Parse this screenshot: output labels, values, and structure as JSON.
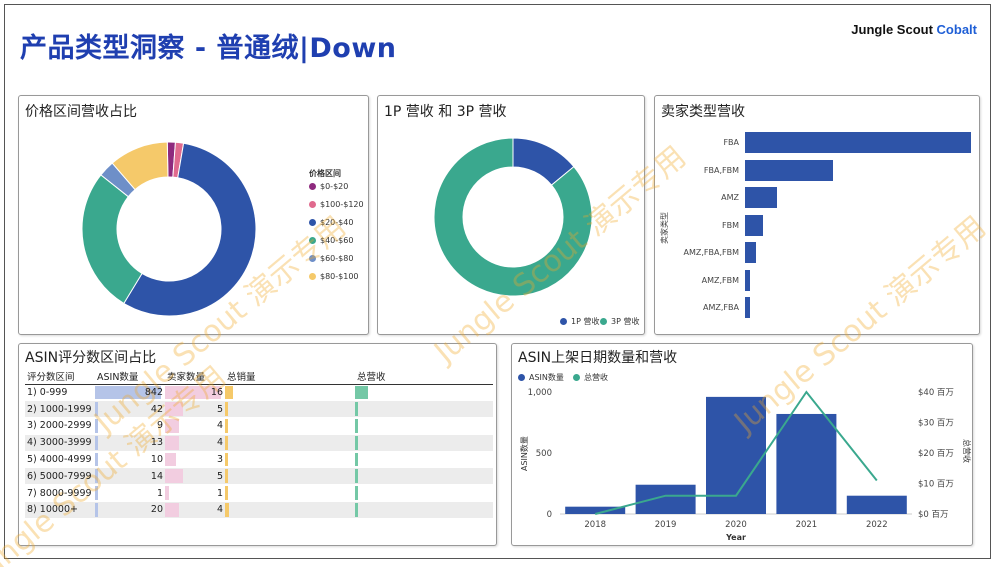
{
  "header": {
    "title": "产品类型洞察 - 普通绒|Down",
    "brand_main": "Jungle Scout",
    "brand_accent": "Cobalt"
  },
  "watermark": "Jungle Scout 演示专用",
  "panels": {
    "price": {
      "title": "价格区间营收占比",
      "legend_title": "价格区间",
      "slices": [
        {
          "label": "$0-$20",
          "value": 1.5,
          "color": "#8e2a7e"
        },
        {
          "label": "$100-$120",
          "value": 1.5,
          "color": "#e06a8e"
        },
        {
          "label": "$20-$40",
          "value": 56,
          "color": "#2e54a8"
        },
        {
          "label": "$40-$60",
          "value": 27,
          "color": "#3aa88e"
        },
        {
          "label": "$60-$80",
          "value": 3,
          "color": "#6e8fc8"
        },
        {
          "label": "$80-$100",
          "value": 11,
          "color": "#f5c96a"
        }
      ]
    },
    "party": {
      "title": "1P 营收 和 3P 营收",
      "slices": [
        {
          "label": "1P 营收",
          "value": 14,
          "color": "#2e54a8"
        },
        {
          "label": "3P 营收",
          "value": 86,
          "color": "#3aa88e"
        }
      ]
    },
    "seller": {
      "title": "卖家类型营收",
      "axis_label": "卖家类型",
      "categories": [
        "FBA",
        "FBA,FBM",
        "AMZ",
        "FBM",
        "AMZ,FBA,FBM",
        "AMZ,FBM",
        "AMZ,FBA"
      ],
      "values": [
        100,
        39,
        14,
        8,
        5,
        2,
        2
      ]
    },
    "asin": {
      "title": "ASIN评分数区间占比",
      "columns": [
        "评分数区间",
        "ASIN数量",
        "卖家数量",
        "总销量",
        "总营收"
      ],
      "rows": [
        {
          "range": "1) 0-999",
          "asin": 842,
          "sellers": 16,
          "sales": 0.06,
          "revenue": 0.1
        },
        {
          "range": "2) 1000-1999",
          "asin": 42,
          "sellers": 5,
          "sales": 0.01,
          "revenue": 0.01
        },
        {
          "range": "3) 2000-2999",
          "asin": 9,
          "sellers": 4,
          "sales": 0.01,
          "revenue": 0.01
        },
        {
          "range": "4) 3000-3999",
          "asin": 13,
          "sellers": 4,
          "sales": 0.01,
          "revenue": 0.01
        },
        {
          "range": "5) 4000-4999",
          "asin": 10,
          "sellers": 3,
          "sales": 0.01,
          "revenue": 0.01
        },
        {
          "range": "6) 5000-7999",
          "asin": 14,
          "sellers": 5,
          "sales": 0.01,
          "revenue": 0.01
        },
        {
          "range": "7) 8000-9999",
          "asin": 1,
          "sellers": 1,
          "sales": 0.01,
          "revenue": 0.01
        },
        {
          "range": "8) 10000+",
          "asin": 20,
          "sellers": 4,
          "sales": 0.03,
          "revenue": 0.02
        }
      ]
    },
    "listing": {
      "title": "ASIN上架日期数量和营收",
      "legend": [
        "ASIN数量",
        "总营收"
      ],
      "xlabel": "Year",
      "ylabel_left": "ASIN数量",
      "ylabel_right": "总营收",
      "years": [
        "2018",
        "2019",
        "2020",
        "2021",
        "2022"
      ],
      "asin_counts": [
        60,
        240,
        960,
        820,
        150
      ],
      "revenue_m": [
        0,
        6,
        6,
        40,
        11
      ],
      "left_ticks": [
        "0",
        "500",
        "1,000"
      ],
      "right_ticks": [
        "$0 百万",
        "$10 百万",
        "$20 百万",
        "$30 百万",
        "$40 百万"
      ]
    }
  },
  "colors": {
    "title": "#1f3fb0",
    "bar": "#2e54a8",
    "line": "#3aa88e"
  }
}
